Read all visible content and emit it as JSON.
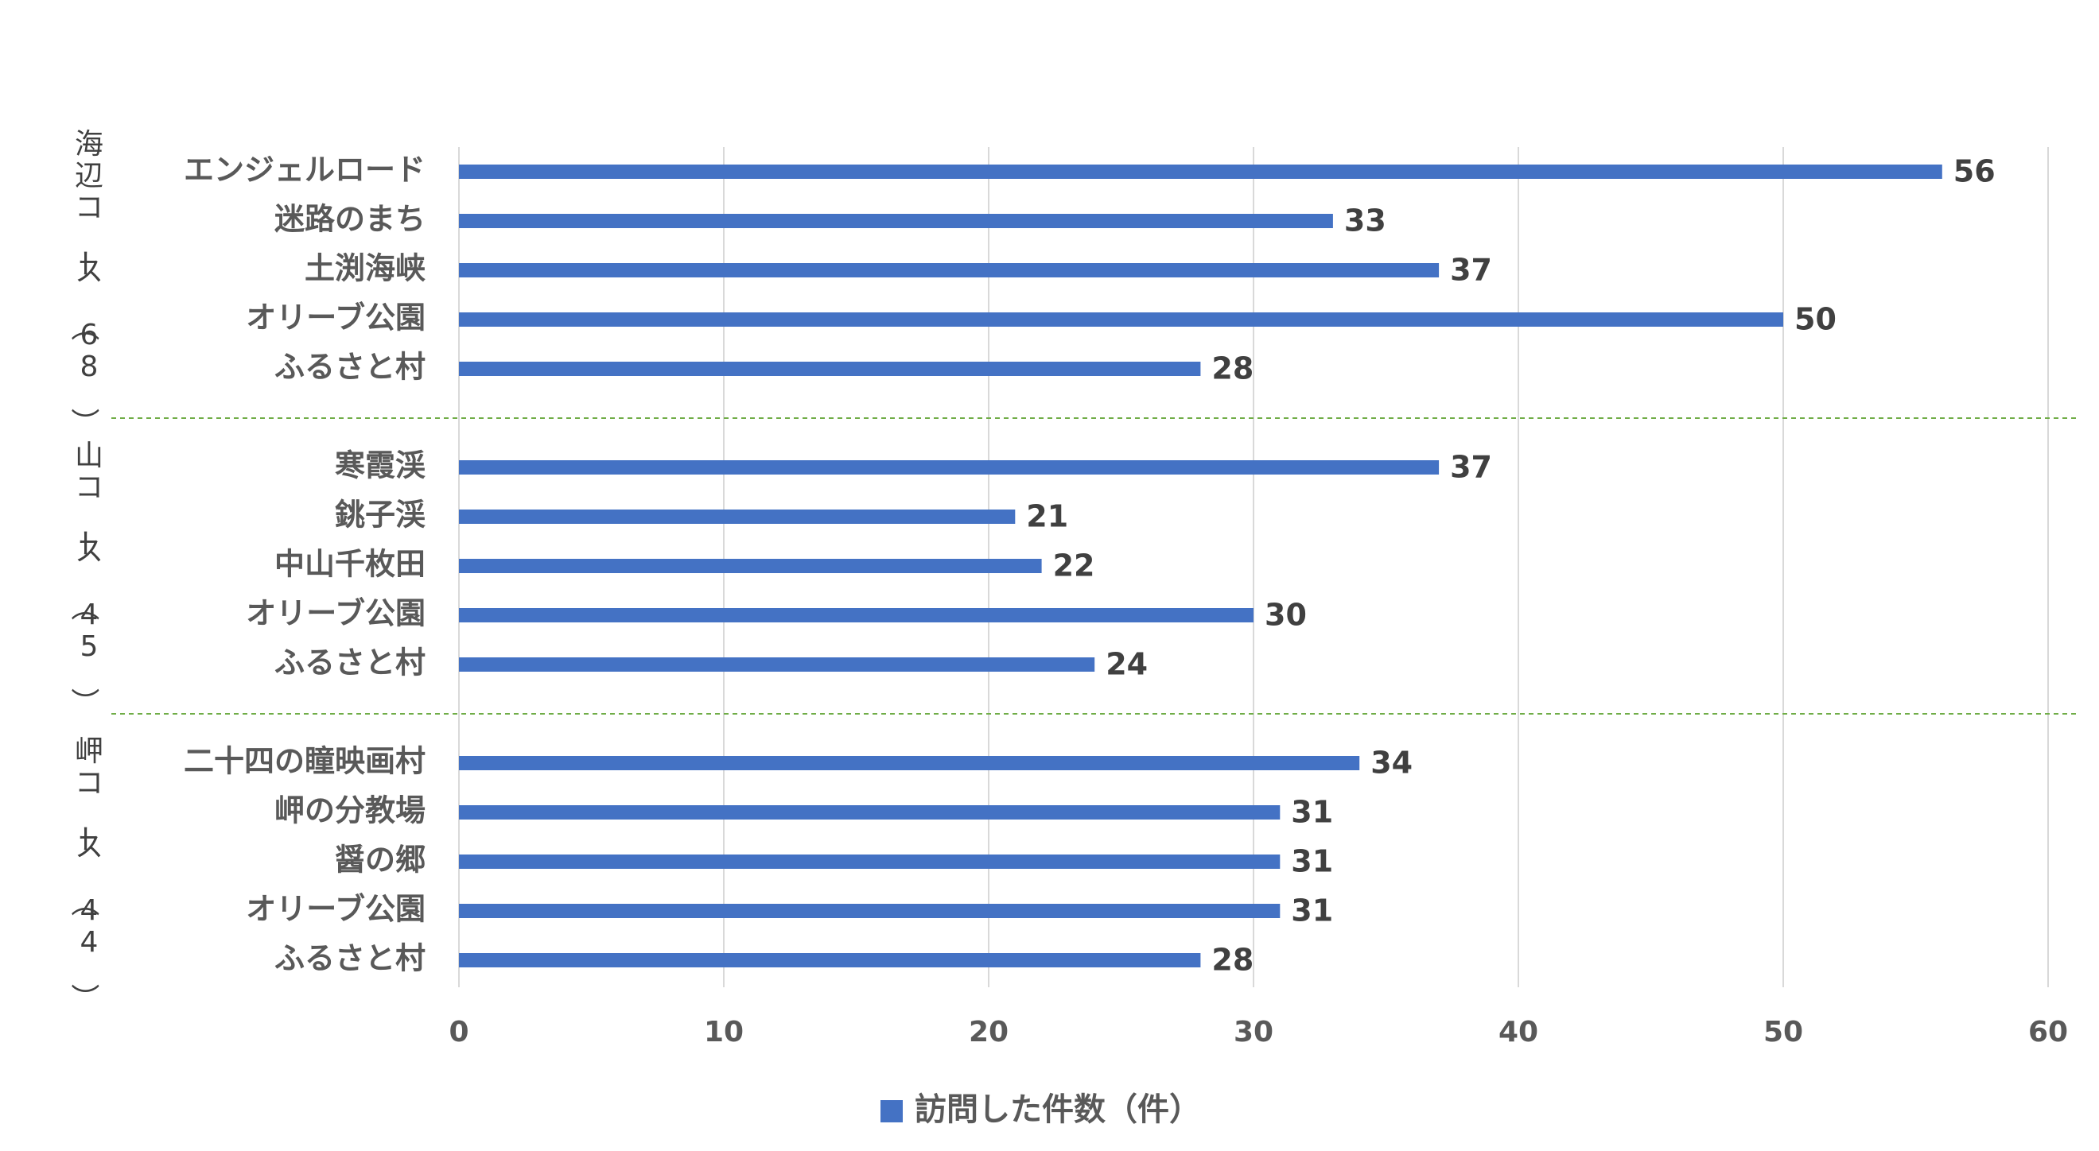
{
  "chart_data": {
    "type": "bar",
    "orientation": "horizontal",
    "xlim": [
      0,
      60
    ],
    "x_ticks": [
      0,
      10,
      20,
      30,
      40,
      50,
      60
    ],
    "grid": true,
    "legend_position": "bottom",
    "bar_color": "#4472C4",
    "series": [
      {
        "name": "訪問した件数（件）"
      }
    ],
    "groups": [
      {
        "label": "海辺コース（68）",
        "items": [
          {
            "category": "エンジェルロード",
            "value": 56
          },
          {
            "category": "迷路のまち",
            "value": 33
          },
          {
            "category": "土渕海峡",
            "value": 37
          },
          {
            "category": "オリーブ公園",
            "value": 50
          },
          {
            "category": "ふるさと村",
            "value": 28
          }
        ]
      },
      {
        "label": "山コース（45）",
        "items": [
          {
            "category": "寒霞渓",
            "value": 37
          },
          {
            "category": "銚子渓",
            "value": 21
          },
          {
            "category": "中山千枚田",
            "value": 22
          },
          {
            "category": "オリーブ公園",
            "value": 30
          },
          {
            "category": "ふるさと村",
            "value": 24
          }
        ]
      },
      {
        "label": "岬コース（44）",
        "items": [
          {
            "category": "二十四の瞳映画村",
            "value": 34
          },
          {
            "category": "岬の分教場",
            "value": 31
          },
          {
            "category": "醤の郷",
            "value": 31
          },
          {
            "category": "オリーブ公園",
            "value": 31
          },
          {
            "category": "ふるさと村",
            "value": 28
          }
        ]
      }
    ]
  }
}
